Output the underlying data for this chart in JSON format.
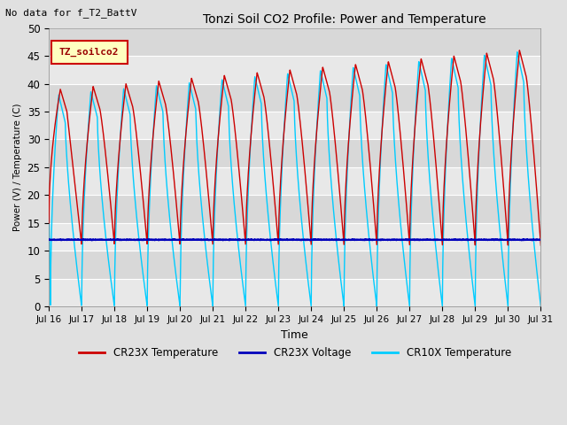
{
  "title": "Tonzi Soil CO2 Profile: Power and Temperature",
  "subtitle": "No data for f_T2_BattV",
  "ylabel": "Power (V) / Temperature (C)",
  "xlabel": "Time",
  "ylim": [
    0,
    50
  ],
  "xlim": [
    0,
    15
  ],
  "xtick_labels": [
    "Jul 16",
    "Jul 17",
    "Jul 18",
    "Jul 19",
    "Jul 20",
    "Jul 21",
    "Jul 22",
    "Jul 23",
    "Jul 24",
    "Jul 25",
    "Jul 26",
    "Jul 27",
    "Jul 28",
    "Jul 29",
    "Jul 30",
    "Jul 31"
  ],
  "legend_label": "TZ_soilco2",
  "cr23x_temp_color": "#CC0000",
  "cr23x_volt_color": "#0000BB",
  "cr10x_temp_color": "#00CCFF",
  "background_color": "#E0E0E0",
  "plot_bg_color": "#E8E8E8",
  "grid_color": "#FFFFFF",
  "voltage_level": 12.0,
  "num_days": 15,
  "band_colors": [
    "#E8E8E8",
    "#D8D8D8"
  ]
}
